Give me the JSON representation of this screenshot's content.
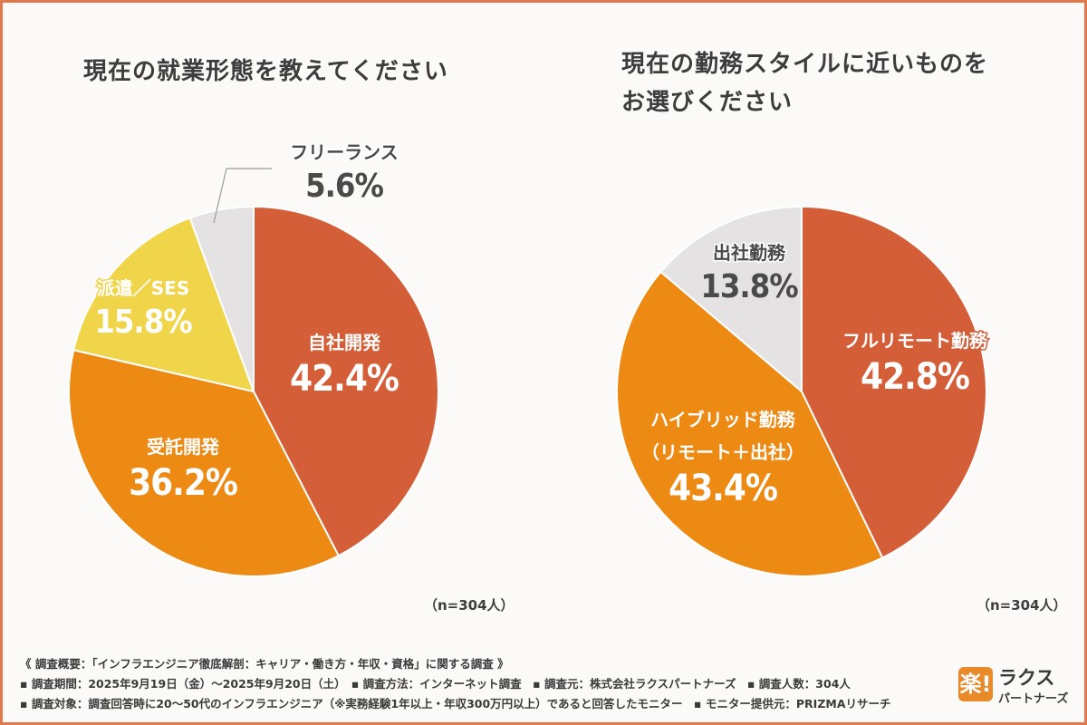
{
  "chart_data": [
    {
      "type": "pie",
      "title": "現在の就業形態を教えてください",
      "sample": "（n=304人）",
      "slices": [
        {
          "label": "自社開発",
          "value": 42.4,
          "display": "42.4%",
          "color": "#d35e37"
        },
        {
          "label": "受託開発",
          "value": 36.2,
          "display": "36.2%",
          "color": "#ec8a14"
        },
        {
          "label": "派遣／SES",
          "value": 15.8,
          "display": "15.8%",
          "color": "#f0d44a"
        },
        {
          "label": "フリーランス",
          "value": 5.6,
          "display": "5.6%",
          "color": "#e5e2e4"
        }
      ]
    },
    {
      "type": "pie",
      "title": "現在の勤務スタイルに近いものをお選びください",
      "title_lines": [
        "現在の勤務スタイルに近いものを",
        "お選びください"
      ],
      "sample": "（n=304人）",
      "slices": [
        {
          "label": "フルリモート勤務",
          "value": 42.8,
          "display": "42.8%",
          "color": "#d35e37"
        },
        {
          "label": "ハイブリッド勤務",
          "sublabel": "（リモート＋出社）",
          "value": 43.4,
          "display": "43.4%",
          "color": "#ec8a14"
        },
        {
          "label": "出社勤務",
          "value": 13.8,
          "display": "13.8%",
          "color": "#e5e2e4"
        }
      ]
    }
  ],
  "footer": {
    "line1": "《 調査概要：「インフラエンジニア徹底解剖：キャリア・働き方・年収・資格」に関する調査 》",
    "line2": "▪ 調査期間：2025年9月19日（金）〜2025年9月20日（土）　▪ 調査方法：インターネット調査　▪ 調査元：株式会社ラクスパートナーズ　▪ 調査人数：304人",
    "line3": "▪ 調査対象：調査回答時に20〜50代のインフラエンジニア（※実務経験1年以上・年収300万円以上）であると回答したモニター　▪ モニター提供元：PRIZMAリサーチ"
  },
  "logo": {
    "mark": "楽!",
    "name": "ラクス",
    "sub": "パートナーズ"
  }
}
